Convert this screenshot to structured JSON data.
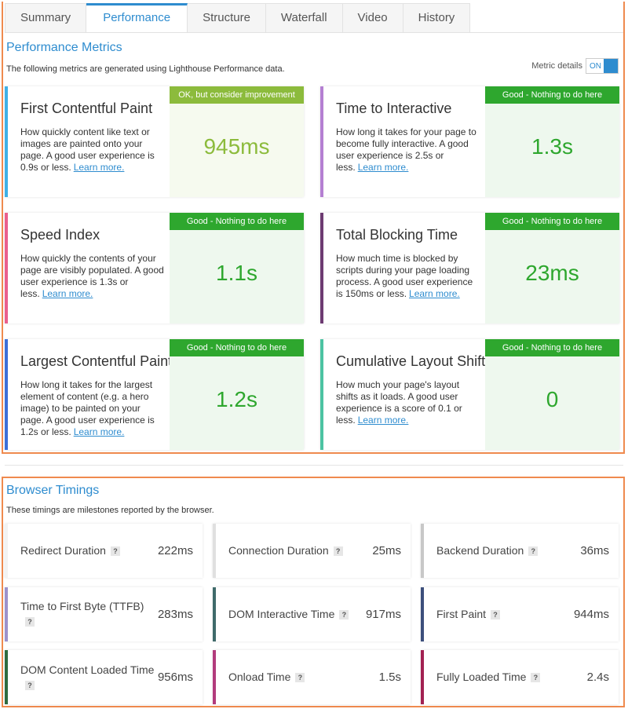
{
  "tabs": [
    "Summary",
    "Performance",
    "Structure",
    "Waterfall",
    "Video",
    "History"
  ],
  "performance": {
    "title": "Performance Metrics",
    "description": "The following metrics are generated using Lighthouse Performance data.",
    "toggle_label": "Metric details",
    "toggle_state": "ON",
    "metrics": [
      {
        "name": "First Contentful Paint",
        "description": "How quickly content like text or images are painted onto your page. A good user experience is 0.9s or less.",
        "link": "Learn more.",
        "status": "OK, but consider improvement",
        "value": "945ms",
        "color": "#3fb0e6",
        "status_color": "#8cbb3c"
      },
      {
        "name": "Time to Interactive",
        "description": "How long it takes for your page to become fully interactive. A good user experience is 2.5s or less.",
        "link": "Learn more.",
        "status": "Good - Nothing to do here",
        "value": "1.3s",
        "color": "#b47fd2",
        "status_color": "#2ea72e"
      },
      {
        "name": "Speed Index",
        "description": "How quickly the contents of your page are visibly populated. A good user experience is 1.3s or less.",
        "link": "Learn more.",
        "status": "Good - Nothing to do here",
        "value": "1.1s",
        "color": "#ea5f8c",
        "status_color": "#2ea72e"
      },
      {
        "name": "Total Blocking Time",
        "description": "How much time is blocked by scripts during your page loading process. A good user experience is 150ms or less.",
        "link": "Learn more.",
        "status": "Good - Nothing to do here",
        "value": "23ms",
        "color": "#6d3b72",
        "status_color": "#2ea72e"
      },
      {
        "name": "Largest Contentful Paint",
        "description": "How long it takes for the largest element of content (e.g. a hero image) to be painted on your page. A good user experience is 1.2s or less.",
        "link": "Learn more.",
        "status": "Good - Nothing to do here",
        "value": "1.2s",
        "color": "#3c6fd8",
        "status_color": "#2ea72e"
      },
      {
        "name": "Cumulative Layout Shift",
        "description": "How much your page's layout shifts as it loads. A good user experience is a score of 0.1 or less.",
        "link": "Learn more.",
        "status": "Good - Nothing to do here",
        "value": "0",
        "color": "#4cc3a2",
        "status_color": "#2ea72e"
      }
    ]
  },
  "browser_timings": {
    "title": "Browser Timings",
    "description": "These timings are milestones reported by the browser.",
    "timings": [
      {
        "name": "Redirect Duration",
        "value": "222ms",
        "color": "#f2f2f2"
      },
      {
        "name": "Connection Duration",
        "value": "25ms",
        "color": "#e0e0e0"
      },
      {
        "name": "Backend Duration",
        "value": "36ms",
        "color": "#c8c8c8"
      },
      {
        "name": "Time to First Byte (TTFB)",
        "value": "283ms",
        "color": "#9c92cc"
      },
      {
        "name": "DOM Interactive Time",
        "value": "917ms",
        "color": "#3f6a6a"
      },
      {
        "name": "First Paint",
        "value": "944ms",
        "color": "#3d4f7c"
      },
      {
        "name": "DOM Content Loaded Time",
        "value": "956ms",
        "color": "#2f6b40"
      },
      {
        "name": "Onload Time",
        "value": "1.5s",
        "color": "#b23b7c"
      },
      {
        "name": "Fully Loaded Time",
        "value": "2.4s",
        "color": "#a22152"
      }
    ]
  }
}
